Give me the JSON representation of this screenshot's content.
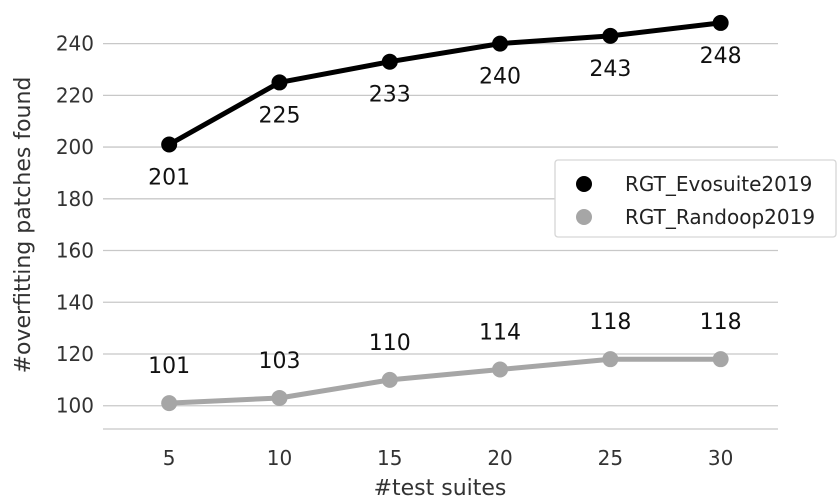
{
  "chart_data": {
    "type": "line",
    "x": [
      5,
      10,
      15,
      20,
      25,
      30
    ],
    "series": [
      {
        "name": "RGT_Evosuite2019",
        "color": "#000000",
        "values": [
          201,
          225,
          233,
          240,
          243,
          248
        ]
      },
      {
        "name": "RGT_Randoop2019",
        "color": "#a6a6a6",
        "values": [
          101,
          103,
          110,
          114,
          118,
          118
        ]
      }
    ],
    "xlabel": "#test suites",
    "ylabel": "#overfitting patches found",
    "xticks": [
      "5",
      "10",
      "15",
      "20",
      "25",
      "30"
    ],
    "yticks": [
      "100",
      "120",
      "140",
      "160",
      "180",
      "200",
      "220",
      "240"
    ],
    "xlim": [
      2,
      32.6
    ],
    "ylim": [
      91,
      253
    ],
    "grid": "horizontal",
    "legend_position": "right"
  }
}
